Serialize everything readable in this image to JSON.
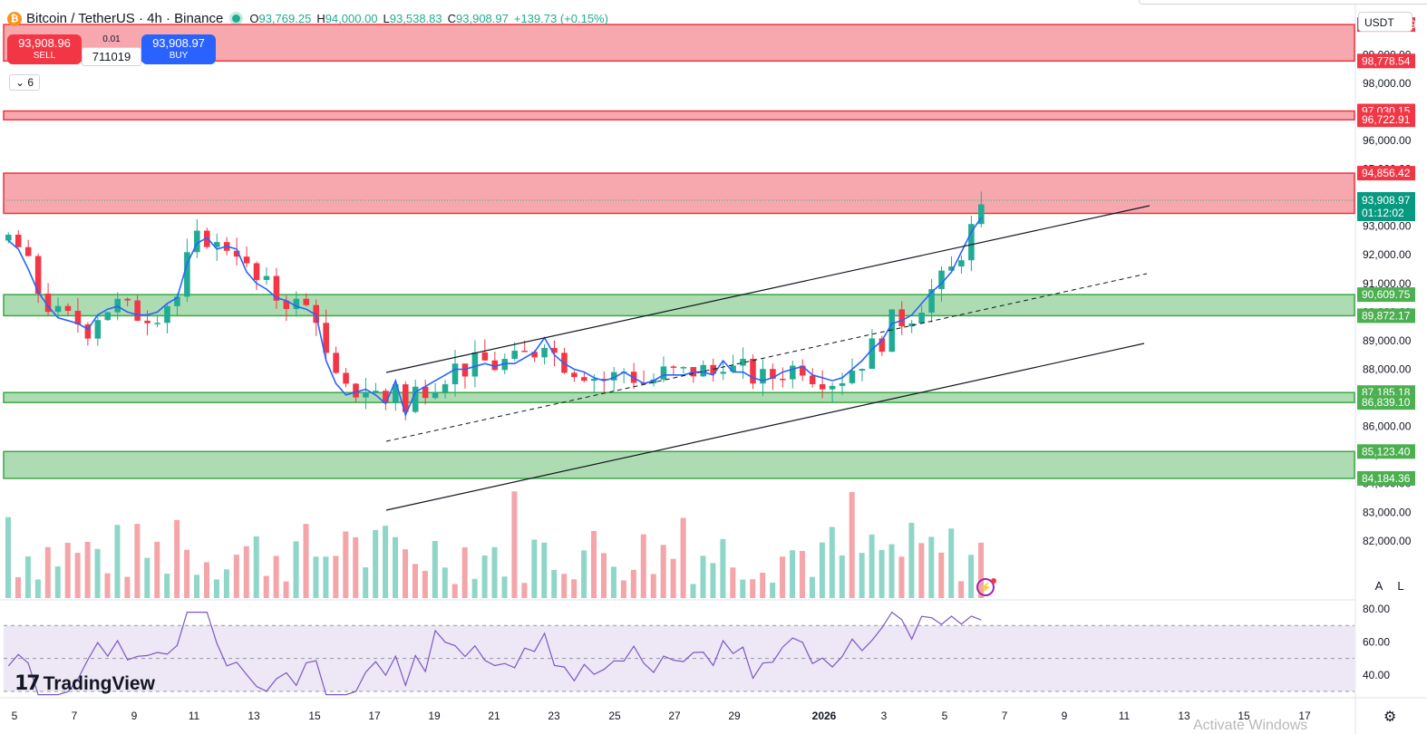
{
  "header": {
    "coin_icon": "bitcoin-icon",
    "title": "Bitcoin / TetherUS · 4h · Binance",
    "open_label": "O",
    "open_value": "93,769.25",
    "high_label": "H",
    "high_value": "94,000.00",
    "low_label": "L",
    "low_value": "93,538.83",
    "close_label": "C",
    "close_value": "93,908.97",
    "change": "+139.73 (+0.15%)"
  },
  "trade": {
    "sell_price": "93,908.96",
    "sell_label": "SELL",
    "buy_price": "93,908.97",
    "buy_label": "BUY",
    "spread": "0.01",
    "quantity": "711019"
  },
  "indicators_toggle": "6",
  "currency": "USDT",
  "price_axis": {
    "ticks": [
      "99,000.00",
      "98,000.00",
      "96,000.00",
      "95,000.00",
      "93,000.00",
      "92,000.00",
      "91,000.00",
      "90,000.00",
      "89,000.00",
      "88,000.00",
      "86,000.00",
      "85,000.00",
      "84,000.00",
      "83,000.00",
      "82,000.00"
    ],
    "level_labels": [
      {
        "text": "100,052.39",
        "kind": "red"
      },
      {
        "text": "98,778.54",
        "kind": "red"
      },
      {
        "text": "97,030.15",
        "kind": "red"
      },
      {
        "text": "96,722.91",
        "kind": "red"
      },
      {
        "text": "94,856.42",
        "kind": "red"
      },
      {
        "text": "90,609.75",
        "kind": "green"
      },
      {
        "text": "89,872.17",
        "kind": "green"
      },
      {
        "text": "87,185.18",
        "kind": "green"
      },
      {
        "text": "86,839.10",
        "kind": "green"
      },
      {
        "text": "85,123.40",
        "kind": "green"
      },
      {
        "text": "84,184.36",
        "kind": "green"
      }
    ],
    "current_price": "93,908.97",
    "countdown": "01:12:02"
  },
  "rsi_axis": [
    "80.00",
    "60.00",
    "40.00"
  ],
  "time_axis": [
    "5",
    "7",
    "9",
    "11",
    "13",
    "15",
    "17",
    "19",
    "21",
    "23",
    "25",
    "27",
    "29",
    "2026",
    "3",
    "5",
    "7",
    "9",
    "11",
    "13",
    "15",
    "17"
  ],
  "axis_buttons": {
    "auto": "A",
    "log": "L"
  },
  "logo_text": "TradingView",
  "watermark": "Activate Windows",
  "colors": {
    "up": "#22ab94",
    "down": "#f23645",
    "ema": "#2962ff",
    "rsi": "#7e57c2",
    "red_zone": "#f7a8ae",
    "green_zone": "#aedcb2"
  },
  "chart_data": {
    "type": "candlestick",
    "symbol": "BTCUSDT",
    "interval": "4h",
    "y_range": [
      82000,
      100500
    ],
    "zones": [
      {
        "top": 100052.39,
        "bottom": 98778.54,
        "color": "red"
      },
      {
        "top": 97030.15,
        "bottom": 96722.91,
        "color": "red"
      },
      {
        "top": 94856.42,
        "bottom": 93450,
        "color": "red"
      },
      {
        "top": 90609.75,
        "bottom": 89872.17,
        "color": "green"
      },
      {
        "top": 87185.18,
        "bottom": 86839.1,
        "color": "green"
      },
      {
        "top": 85123.4,
        "bottom": 84184.36,
        "color": "green"
      }
    ],
    "last_price": 93908.97,
    "ema": [
      92500,
      92200,
      91500,
      90700,
      90200,
      89800,
      89700,
      89600,
      89400,
      89900,
      90100,
      90200,
      90000,
      89900,
      89900,
      90000,
      90300,
      90500,
      91700,
      92400,
      92600,
      92200,
      92300,
      92200,
      91400,
      91000,
      90800,
      90500,
      90400,
      90200,
      90100,
      89900,
      88300,
      87500,
      87100,
      87200,
      87300,
      87100,
      86800,
      87600,
      86400,
      87200,
      87400,
      87600,
      87800,
      88000,
      88000,
      88100,
      88200,
      88100,
      88200,
      88200,
      88400,
      88600,
      89100,
      88500,
      88200,
      88000,
      87900,
      87700,
      87600,
      87700,
      87900,
      87700,
      87500,
      87600,
      87800,
      87800,
      87800,
      87900,
      87900,
      87800,
      88300,
      87900,
      87900,
      87700,
      87600,
      87700,
      87900,
      88000,
      88100,
      87800,
      87700,
      87600,
      87700,
      88000,
      88300,
      88700,
      89000,
      89600,
      89700,
      89900,
      90300,
      90700,
      91000,
      91400,
      92100,
      92800,
      93300
    ]
  }
}
